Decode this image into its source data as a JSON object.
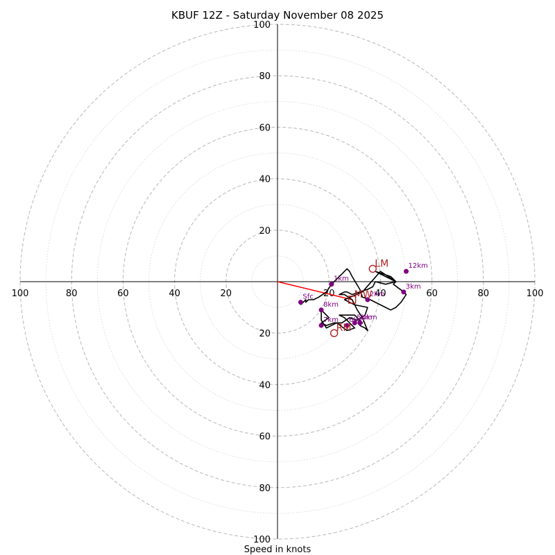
{
  "chart_data": {
    "type": "hodograph",
    "title": "KBUF 12Z - Saturday November 08 2025",
    "xlabel": "Speed in knots",
    "ylabel": "",
    "xlim": [
      -100,
      100
    ],
    "ylim": [
      -100,
      100
    ],
    "rings": {
      "major_step": 20,
      "minor_step": 10,
      "max": 100
    },
    "tick_values": [
      20,
      40,
      60,
      80,
      100
    ],
    "colors": {
      "hodograph": "#000000",
      "height_markers": "#800080",
      "storm_motion": "#b22222",
      "shear_vector": "#ff0000",
      "rings": "#bdbdbd"
    },
    "trace": [
      [
        9,
        -9
      ],
      [
        11,
        -7
      ],
      [
        11,
        -8
      ],
      [
        12,
        -7
      ],
      [
        14,
        -7
      ],
      [
        16,
        -6
      ],
      [
        19,
        -4
      ],
      [
        21,
        -1
      ],
      [
        23,
        1
      ],
      [
        25,
        3
      ],
      [
        27,
        5
      ],
      [
        28,
        4
      ],
      [
        29,
        2
      ],
      [
        32,
        -3
      ],
      [
        33,
        -6
      ],
      [
        36,
        -7
      ],
      [
        42,
        -10
      ],
      [
        44,
        -11
      ],
      [
        46,
        -10
      ],
      [
        48,
        -8
      ],
      [
        50,
        -5
      ],
      [
        49,
        -4
      ],
      [
        45,
        -1
      ],
      [
        46,
        0
      ],
      [
        40,
        4
      ],
      [
        33,
        -4
      ],
      [
        26,
        -7
      ],
      [
        30,
        -9
      ],
      [
        35,
        -10
      ],
      [
        34,
        -13
      ],
      [
        31,
        -15
      ],
      [
        28,
        -14
      ],
      [
        25,
        -16
      ],
      [
        22,
        -16
      ],
      [
        19,
        -17
      ],
      [
        17,
        -16
      ],
      [
        20,
        -14
      ],
      [
        18,
        -12
      ],
      [
        17,
        -11
      ],
      [
        17,
        -15
      ],
      [
        19,
        -18
      ],
      [
        23,
        -16
      ],
      [
        27,
        -19
      ],
      [
        30,
        -18
      ],
      [
        26,
        -14
      ],
      [
        24,
        -13
      ],
      [
        30,
        -13
      ],
      [
        31,
        -14
      ],
      [
        33,
        -16
      ],
      [
        32,
        -17
      ],
      [
        34,
        -18
      ],
      [
        35,
        -19
      ],
      [
        33,
        -14
      ],
      [
        31,
        -11
      ],
      [
        30,
        -9
      ],
      [
        29,
        -7
      ],
      [
        26,
        -5
      ],
      [
        24,
        -5
      ],
      [
        26,
        -4
      ],
      [
        27,
        -4
      ],
      [
        29,
        -5
      ],
      [
        32,
        -4
      ],
      [
        35,
        -3
      ],
      [
        37,
        -2
      ],
      [
        38,
        0
      ],
      [
        42,
        -1
      ],
      [
        46,
        0
      ],
      [
        44,
        2
      ],
      [
        41,
        3
      ],
      [
        38,
        4
      ],
      [
        42,
        2
      ],
      [
        46,
        0
      ]
    ],
    "height_markers": [
      {
        "label": "Sfc",
        "u": 9,
        "v": -8
      },
      {
        "label": "1km",
        "u": 21,
        "v": -1
      },
      {
        "label": "2km",
        "u": 35,
        "v": -7
      },
      {
        "label": "3km",
        "u": 49,
        "v": -4
      },
      {
        "label": "4km",
        "u": 32,
        "v": -16
      },
      {
        "label": "5km",
        "u": 30,
        "v": -16
      },
      {
        "label": "6km",
        "u": 27,
        "v": -17
      },
      {
        "label": "7km",
        "u": 17,
        "v": -17
      },
      {
        "label": "8km",
        "u": 17,
        "v": -11
      },
      {
        "label": "12km",
        "u": 50,
        "v": 4
      }
    ],
    "storm_motion": [
      {
        "label": "LM",
        "u": 37,
        "v": 5,
        "marker": "circle"
      },
      {
        "label": "MW",
        "u": 29,
        "v": -7,
        "marker": "square"
      },
      {
        "label": "RM",
        "u": 22,
        "v": -20,
        "marker": "circle"
      }
    ],
    "shear_vector": {
      "from": [
        0,
        0
      ],
      "to": [
        29,
        -7
      ]
    }
  }
}
